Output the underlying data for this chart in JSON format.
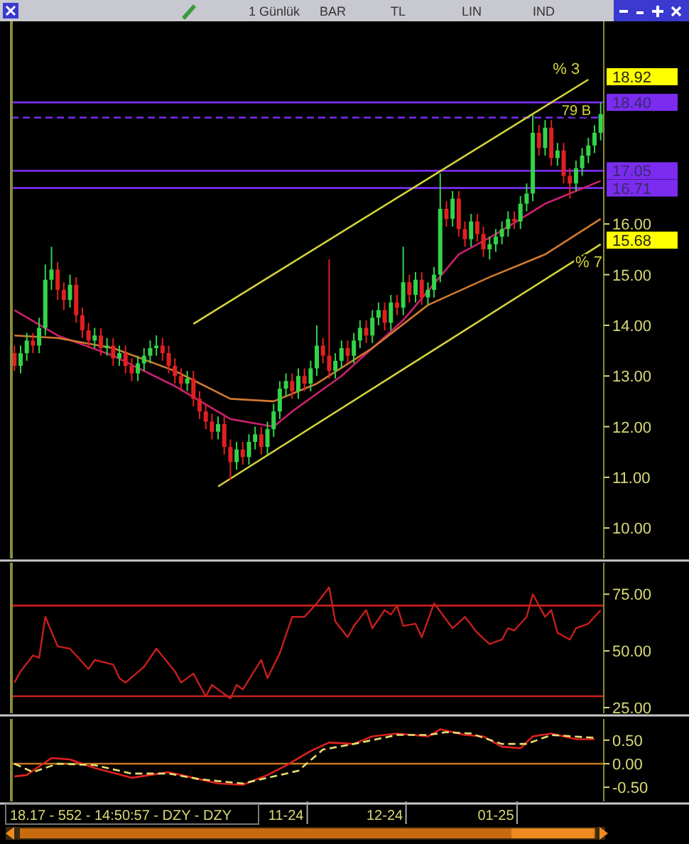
{
  "chart_data": [
    {
      "type": "candlestick",
      "categories": [
        null,
        null,
        null,
        null,
        null,
        null,
        null,
        null,
        null,
        null,
        null,
        null,
        null,
        null,
        null,
        null,
        null,
        null,
        null,
        null,
        null,
        null,
        null,
        null,
        null,
        null,
        null,
        null,
        null,
        null,
        null,
        null,
        null,
        null,
        null,
        null,
        null,
        null,
        null,
        null,
        null,
        null,
        null,
        null,
        null,
        null,
        null,
        null,
        null,
        null,
        null,
        null,
        null,
        null,
        null,
        null,
        null,
        null,
        null,
        null,
        null,
        null,
        null,
        null,
        null,
        null,
        null,
        null,
        null,
        null,
        null,
        null,
        null,
        null,
        null,
        null,
        null,
        null,
        null,
        null,
        null,
        null,
        null,
        null,
        null,
        null,
        null,
        null,
        null,
        null,
        null,
        null,
        null,
        null,
        null,
        null
      ],
      "ohlc": [
        [
          13.45,
          13.6,
          13.1,
          13.2
        ],
        [
          13.2,
          13.6,
          13.05,
          13.45
        ],
        [
          13.45,
          13.85,
          13.3,
          13.7
        ],
        [
          13.7,
          13.85,
          13.45,
          13.6
        ],
        [
          13.6,
          14.15,
          13.45,
          13.95
        ],
        [
          13.95,
          15.2,
          13.8,
          14.9
        ],
        [
          14.9,
          15.55,
          14.7,
          15.1
        ],
        [
          15.1,
          15.25,
          14.5,
          14.7
        ],
        [
          14.7,
          14.85,
          14.3,
          14.5
        ],
        [
          14.5,
          15.0,
          14.35,
          14.8
        ],
        [
          14.8,
          14.95,
          14.05,
          14.2
        ],
        [
          14.2,
          14.35,
          13.75,
          13.9
        ],
        [
          13.9,
          14.05,
          13.55,
          13.7
        ],
        [
          13.7,
          13.95,
          13.55,
          13.8
        ],
        [
          13.8,
          13.95,
          13.4,
          13.55
        ],
        [
          13.55,
          13.75,
          13.4,
          13.6
        ],
        [
          13.6,
          13.75,
          13.2,
          13.35
        ],
        [
          13.35,
          13.6,
          13.2,
          13.45
        ],
        [
          13.45,
          13.6,
          13.05,
          13.2
        ],
        [
          13.2,
          13.35,
          12.9,
          13.05
        ],
        [
          13.05,
          13.4,
          12.9,
          13.25
        ],
        [
          13.25,
          13.55,
          13.1,
          13.4
        ],
        [
          13.4,
          13.7,
          13.25,
          13.55
        ],
        [
          13.55,
          13.8,
          13.4,
          13.6
        ],
        [
          13.6,
          13.75,
          13.3,
          13.45
        ],
        [
          13.45,
          13.6,
          13.05,
          13.2
        ],
        [
          13.2,
          13.35,
          12.85,
          13.0
        ],
        [
          13.0,
          13.15,
          12.7,
          12.85
        ],
        [
          12.85,
          13.1,
          12.7,
          12.95
        ],
        [
          12.95,
          13.1,
          12.4,
          12.55
        ],
        [
          12.55,
          12.7,
          12.15,
          12.3
        ],
        [
          12.3,
          12.45,
          11.95,
          12.1
        ],
        [
          12.1,
          12.25,
          11.75,
          11.9
        ],
        [
          11.9,
          12.2,
          11.75,
          12.05
        ],
        [
          12.05,
          12.2,
          11.45,
          11.6
        ],
        [
          11.6,
          11.75,
          10.95,
          11.3
        ],
        [
          11.3,
          11.7,
          11.15,
          11.55
        ],
        [
          11.55,
          11.7,
          11.25,
          11.4
        ],
        [
          11.4,
          11.85,
          11.25,
          11.7
        ],
        [
          11.7,
          12.0,
          11.55,
          11.85
        ],
        [
          11.85,
          12.0,
          11.45,
          11.6
        ],
        [
          11.6,
          12.1,
          11.45,
          11.95
        ],
        [
          11.95,
          12.45,
          11.8,
          12.3
        ],
        [
          12.3,
          12.9,
          12.15,
          12.75
        ],
        [
          12.75,
          13.05,
          12.6,
          12.9
        ],
        [
          12.9,
          13.05,
          12.55,
          12.7
        ],
        [
          12.7,
          13.15,
          12.55,
          13.0
        ],
        [
          13.0,
          13.15,
          12.7,
          12.85
        ],
        [
          12.85,
          13.3,
          12.7,
          13.15
        ],
        [
          13.15,
          14.0,
          13.0,
          13.6
        ],
        [
          13.6,
          13.75,
          13.25,
          13.4
        ],
        [
          13.4,
          15.3,
          12.95,
          13.1
        ],
        [
          13.1,
          13.45,
          12.95,
          13.3
        ],
        [
          13.3,
          13.7,
          13.15,
          13.55
        ],
        [
          13.55,
          13.7,
          13.25,
          13.4
        ],
        [
          13.4,
          13.85,
          13.25,
          13.7
        ],
        [
          13.7,
          14.1,
          13.55,
          13.95
        ],
        [
          13.95,
          14.1,
          13.65,
          13.8
        ],
        [
          13.8,
          14.3,
          13.65,
          14.15
        ],
        [
          14.15,
          14.45,
          14.0,
          14.3
        ],
        [
          14.3,
          14.45,
          13.9,
          14.05
        ],
        [
          14.05,
          14.6,
          13.9,
          14.45
        ],
        [
          14.45,
          14.6,
          14.2,
          14.35
        ],
        [
          14.35,
          15.55,
          14.2,
          14.85
        ],
        [
          14.85,
          15.0,
          14.45,
          14.6
        ],
        [
          14.6,
          15.05,
          14.45,
          14.9
        ],
        [
          14.9,
          15.05,
          14.4,
          14.55
        ],
        [
          14.55,
          14.85,
          14.4,
          14.7
        ],
        [
          14.7,
          15.15,
          14.55,
          15.0
        ],
        [
          15.0,
          17.0,
          14.85,
          16.3
        ],
        [
          16.3,
          16.45,
          15.95,
          16.1
        ],
        [
          16.1,
          16.65,
          15.95,
          16.5
        ],
        [
          16.5,
          16.65,
          15.75,
          15.9
        ],
        [
          15.9,
          16.05,
          15.55,
          15.7
        ],
        [
          15.7,
          16.2,
          15.55,
          16.05
        ],
        [
          16.05,
          16.2,
          15.65,
          15.8
        ],
        [
          15.8,
          15.95,
          15.35,
          15.5
        ],
        [
          15.5,
          15.75,
          15.3,
          15.6
        ],
        [
          15.6,
          15.9,
          15.45,
          15.75
        ],
        [
          15.75,
          16.05,
          15.6,
          15.9
        ],
        [
          15.9,
          16.25,
          15.75,
          16.1
        ],
        [
          16.1,
          16.25,
          15.9,
          16.05
        ],
        [
          16.05,
          16.55,
          15.9,
          16.4
        ],
        [
          16.4,
          16.8,
          16.25,
          16.6
        ],
        [
          16.6,
          18.15,
          16.45,
          17.8
        ],
        [
          17.8,
          17.95,
          17.35,
          17.5
        ],
        [
          17.5,
          18.05,
          17.35,
          17.9
        ],
        [
          17.9,
          18.05,
          17.15,
          17.3
        ],
        [
          17.3,
          17.6,
          17.15,
          17.45
        ],
        [
          17.45,
          17.6,
          16.8,
          16.95
        ],
        [
          16.95,
          17.1,
          16.5,
          16.8
        ],
        [
          16.8,
          17.25,
          16.65,
          17.1
        ],
        [
          17.1,
          17.5,
          16.95,
          17.35
        ],
        [
          17.35,
          17.7,
          17.2,
          17.55
        ],
        [
          17.55,
          17.95,
          17.4,
          17.8
        ],
        [
          17.8,
          18.4,
          17.65,
          18.17
        ]
      ],
      "series": [
        {
          "type": "line",
          "color": "#c8206e",
          "values": [
            14.3,
            null,
            null,
            null,
            null,
            null,
            null,
            13.8,
            null,
            null,
            null,
            null,
            null,
            null,
            null,
            null,
            13.4,
            null,
            null,
            null,
            null,
            null,
            null,
            null,
            null,
            null,
            12.8,
            null,
            null,
            null,
            null,
            null,
            null,
            null,
            null,
            12.15,
            null,
            null,
            null,
            null,
            null,
            null,
            12.0,
            null,
            null,
            12.3,
            null,
            null,
            null,
            null,
            null,
            null,
            null,
            13.0,
            null,
            null,
            null,
            null,
            null,
            null,
            null,
            null,
            null,
            14.1,
            null,
            null,
            null,
            null,
            null,
            null,
            null,
            null,
            15.4,
            null,
            null,
            null,
            null,
            null,
            15.8,
            null,
            null,
            null,
            null,
            null,
            null,
            null,
            16.4,
            null,
            null,
            null,
            null,
            null,
            null,
            null,
            null,
            16.85
          ]
        },
        {
          "type": "line",
          "color": "#d07a30",
          "values": [
            13.8,
            null,
            null,
            null,
            null,
            null,
            null,
            13.75,
            null,
            null,
            null,
            null,
            null,
            null,
            null,
            null,
            13.55,
            null,
            null,
            null,
            null,
            null,
            null,
            null,
            null,
            null,
            13.1,
            null,
            null,
            null,
            null,
            null,
            null,
            null,
            null,
            12.55,
            null,
            null,
            null,
            null,
            null,
            null,
            12.5,
            null,
            null,
            null,
            null,
            null,
            null,
            12.85,
            null,
            null,
            null,
            null,
            null,
            null,
            null,
            null,
            13.55,
            null,
            null,
            null,
            null,
            null,
            null,
            null,
            null,
            14.4,
            null,
            null,
            null,
            null,
            null,
            null,
            null,
            null,
            null,
            14.95,
            null,
            null,
            null,
            null,
            null,
            null,
            null,
            null,
            15.4,
            null,
            null,
            null,
            null,
            null,
            null,
            null,
            null,
            16.1
          ]
        },
        {
          "type": "line",
          "name": "% 3",
          "color": "#d4d43a",
          "values": [
            null,
            null,
            null,
            null,
            null,
            null,
            null,
            null,
            null,
            null,
            null,
            null,
            null,
            null,
            null,
            null,
            null,
            null,
            null,
            null,
            null,
            null,
            null,
            null,
            null,
            null,
            null,
            null,
            null,
            14.03,
            null,
            null,
            null,
            null,
            null,
            null,
            null,
            null,
            null,
            null,
            null,
            null,
            null,
            null,
            null,
            null,
            null,
            null,
            null,
            null,
            null,
            null,
            null,
            null,
            null,
            null,
            null,
            null,
            null,
            null,
            null,
            null,
            null,
            null,
            null,
            null,
            null,
            null,
            null,
            null,
            null,
            null,
            null,
            null,
            null,
            null,
            null,
            null,
            null,
            null,
            null,
            null,
            null,
            null,
            null,
            null,
            null,
            null,
            null,
            null,
            null,
            null,
            null,
            18.85,
            null,
            null
          ]
        },
        {
          "type": "line",
          "name": "% 7",
          "color": "#d4d43a",
          "values": [
            null,
            null,
            null,
            null,
            null,
            null,
            null,
            null,
            null,
            null,
            null,
            null,
            null,
            null,
            null,
            null,
            null,
            null,
            null,
            null,
            null,
            null,
            null,
            null,
            null,
            null,
            null,
            null,
            null,
            null,
            null,
            null,
            null,
            10.82,
            null,
            null,
            null,
            null,
            null,
            null,
            null,
            null,
            null,
            null,
            null,
            null,
            null,
            null,
            null,
            null,
            null,
            null,
            null,
            null,
            null,
            null,
            null,
            null,
            null,
            null,
            null,
            null,
            null,
            null,
            null,
            null,
            null,
            null,
            null,
            null,
            null,
            null,
            null,
            null,
            null,
            null,
            null,
            null,
            null,
            null,
            null,
            null,
            null,
            null,
            null,
            null,
            null,
            null,
            null,
            null,
            null,
            null,
            null,
            null,
            null,
            15.6
          ]
        }
      ],
      "ylim": [
        9.4,
        20.0
      ],
      "yticks": [
        {
          "value": 10,
          "label": "10.00"
        },
        {
          "value": 11,
          "label": "11.00"
        },
        {
          "value": 12,
          "label": "12.00"
        },
        {
          "value": 13,
          "label": "13.00"
        },
        {
          "value": 14,
          "label": "14.00"
        },
        {
          "value": 15,
          "label": "15.00"
        },
        {
          "value": 16,
          "label": "16.00"
        }
      ],
      "tick_labels": "y",
      "ref_lines": [
        {
          "axis": "y",
          "value": 18.4,
          "label": "18.40",
          "color": "#7b2cf0"
        },
        {
          "axis": "y",
          "value": 18.1,
          "label": "79 B",
          "color": "#7b2cf0",
          "line_style": "dashed"
        },
        {
          "axis": "y",
          "value": 17.05,
          "label": "17.05",
          "color": "#7b2cf0"
        },
        {
          "axis": "y",
          "value": 16.71,
          "label": "16.71",
          "color": "#7b2cf0"
        }
      ],
      "annotations": [
        "1 Günlük",
        "BAR",
        "TL",
        "LIN",
        "IND",
        "18.92",
        "15.68"
      ]
    },
    {
      "type": "line",
      "color": "#c81e1e",
      "categories": [
        null,
        null,
        null,
        null,
        null,
        null,
        null,
        null,
        null,
        null,
        null,
        null,
        null,
        null,
        null,
        null,
        null,
        null,
        null,
        null,
        null,
        null,
        null,
        null,
        null,
        null,
        null,
        null,
        null,
        null,
        null,
        null,
        null,
        null,
        null,
        null,
        null,
        null,
        null,
        null,
        null,
        null,
        null,
        null,
        null,
        null,
        null,
        null,
        null,
        null,
        null,
        null,
        null,
        null,
        null,
        null,
        null,
        null,
        null,
        null,
        null,
        null,
        null,
        null,
        null,
        null,
        null,
        null,
        null,
        null,
        null,
        null,
        null,
        null,
        null,
        null,
        null,
        null,
        null,
        null,
        null,
        null,
        null,
        null,
        null,
        null,
        null,
        null,
        null,
        null,
        null,
        null,
        null,
        null,
        null,
        null
      ],
      "values": [
        36,
        41,
        null,
        48,
        47,
        65,
        null,
        52,
        null,
        51,
        null,
        null,
        42,
        46,
        null,
        null,
        44,
        38,
        36,
        null,
        null,
        43,
        null,
        51,
        null,
        null,
        41,
        36,
        null,
        40,
        null,
        30,
        35,
        null,
        null,
        29,
        35,
        33,
        null,
        null,
        46,
        38,
        null,
        49,
        null,
        65,
        null,
        65,
        null,
        71,
        null,
        78,
        63,
        null,
        56,
        61,
        null,
        68,
        60,
        null,
        68,
        66,
        70,
        61,
        null,
        62,
        56,
        null,
        71,
        null,
        null,
        60,
        null,
        65,
        null,
        58,
        null,
        53,
        null,
        55,
        60,
        59,
        null,
        65,
        75,
        null,
        65,
        68,
        58,
        null,
        55,
        60,
        null,
        62,
        null,
        68
      ],
      "ylim": [
        22.5,
        88.9
      ],
      "yticks": [
        {
          "value": 25,
          "label": "25.00"
        },
        {
          "value": 50,
          "label": "50.00"
        },
        {
          "value": 75,
          "label": "75.00"
        }
      ],
      "tick_labels": "y",
      "ref_lines": [
        {
          "axis": "y",
          "value": 70,
          "color": "#c81e1e"
        },
        {
          "axis": "y",
          "value": 30,
          "color": "#c81e1e"
        }
      ]
    },
    {
      "type": "line",
      "categories": [
        null,
        null,
        null,
        null,
        null,
        null,
        null,
        null,
        null,
        null,
        null,
        null,
        null,
        null,
        null,
        null,
        null,
        null,
        null,
        null,
        null,
        null,
        null,
        null,
        null,
        null,
        null,
        null,
        null,
        null,
        null,
        null,
        null,
        null,
        null,
        null,
        null,
        null,
        null,
        null,
        null,
        null,
        null,
        null,
        "11-24",
        null,
        null,
        null,
        null,
        null,
        null,
        null,
        null,
        null,
        null,
        null,
        null,
        null,
        null,
        null,
        "12-24",
        null,
        null,
        null,
        null,
        null,
        null,
        null,
        null,
        null,
        null,
        null,
        null,
        null,
        null,
        null,
        null,
        null,
        "01-25",
        null,
        null,
        null,
        null,
        null,
        null,
        null,
        null,
        null,
        null,
        null,
        null,
        null,
        null,
        null,
        null,
        null
      ],
      "series": [
        {
          "color": "#e02020",
          "values": [
            -0.27,
            null,
            -0.24,
            null,
            null,
            null,
            0.12,
            null,
            null,
            0.09,
            null,
            null,
            null,
            -0.09,
            null,
            null,
            null,
            null,
            null,
            -0.3,
            null,
            null,
            null,
            null,
            null,
            -0.18,
            null,
            null,
            null,
            -0.3,
            null,
            null,
            null,
            -0.42,
            null,
            null,
            null,
            -0.45,
            null,
            null,
            null,
            -0.24,
            null,
            null,
            -0.04,
            null,
            null,
            null,
            0.27,
            null,
            null,
            0.45,
            null,
            null,
            null,
            0.42,
            null,
            null,
            0.58,
            null,
            null,
            null,
            0.64,
            null,
            null,
            null,
            null,
            0.58,
            null,
            0.73,
            null,
            null,
            null,
            0.61,
            null,
            null,
            0.58,
            null,
            null,
            0.36,
            null,
            null,
            0.33,
            null,
            0.58,
            null,
            null,
            0.64,
            null,
            null,
            null,
            0.52,
            null,
            null,
            0.52,
            null
          ]
        },
        {
          "color": "#e8e070",
          "line_style": "dashed",
          "values": [
            0,
            null,
            null,
            -0.18,
            null,
            null,
            null,
            0,
            null,
            null,
            null,
            null,
            null,
            -0.03,
            null,
            null,
            null,
            null,
            null,
            -0.21,
            null,
            null,
            null,
            null,
            null,
            -0.21,
            null,
            null,
            null,
            null,
            -0.33,
            null,
            null,
            null,
            null,
            null,
            null,
            -0.42,
            null,
            null,
            null,
            -0.3,
            null,
            null,
            null,
            null,
            -0.15,
            null,
            null,
            null,
            0.3,
            null,
            null,
            null,
            null,
            0.42,
            null,
            null,
            null,
            null,
            null,
            null,
            0.61,
            null,
            null,
            null,
            null,
            0.61,
            null,
            null,
            0.67,
            null,
            null,
            null,
            0.64,
            null,
            null,
            null,
            null,
            0.42,
            null,
            null,
            null,
            0.42,
            null,
            null,
            null,
            0.61,
            null,
            null,
            null,
            null,
            null,
            null,
            0.55,
            null
          ]
        }
      ],
      "ylim": [
        -0.8,
        0.95
      ],
      "yticks": [
        {
          "value": 0.5,
          "label": "0.50"
        },
        {
          "value": 0,
          "label": "0.00"
        },
        {
          "value": -0.5,
          "label": "-0.50"
        }
      ],
      "ref_lines": [
        {
          "axis": "y",
          "value": 0,
          "color": "#c87820"
        }
      ],
      "annotations": [
        "18.17 - 552 - 14:50:57 - DZY - DZY"
      ]
    }
  ]
}
